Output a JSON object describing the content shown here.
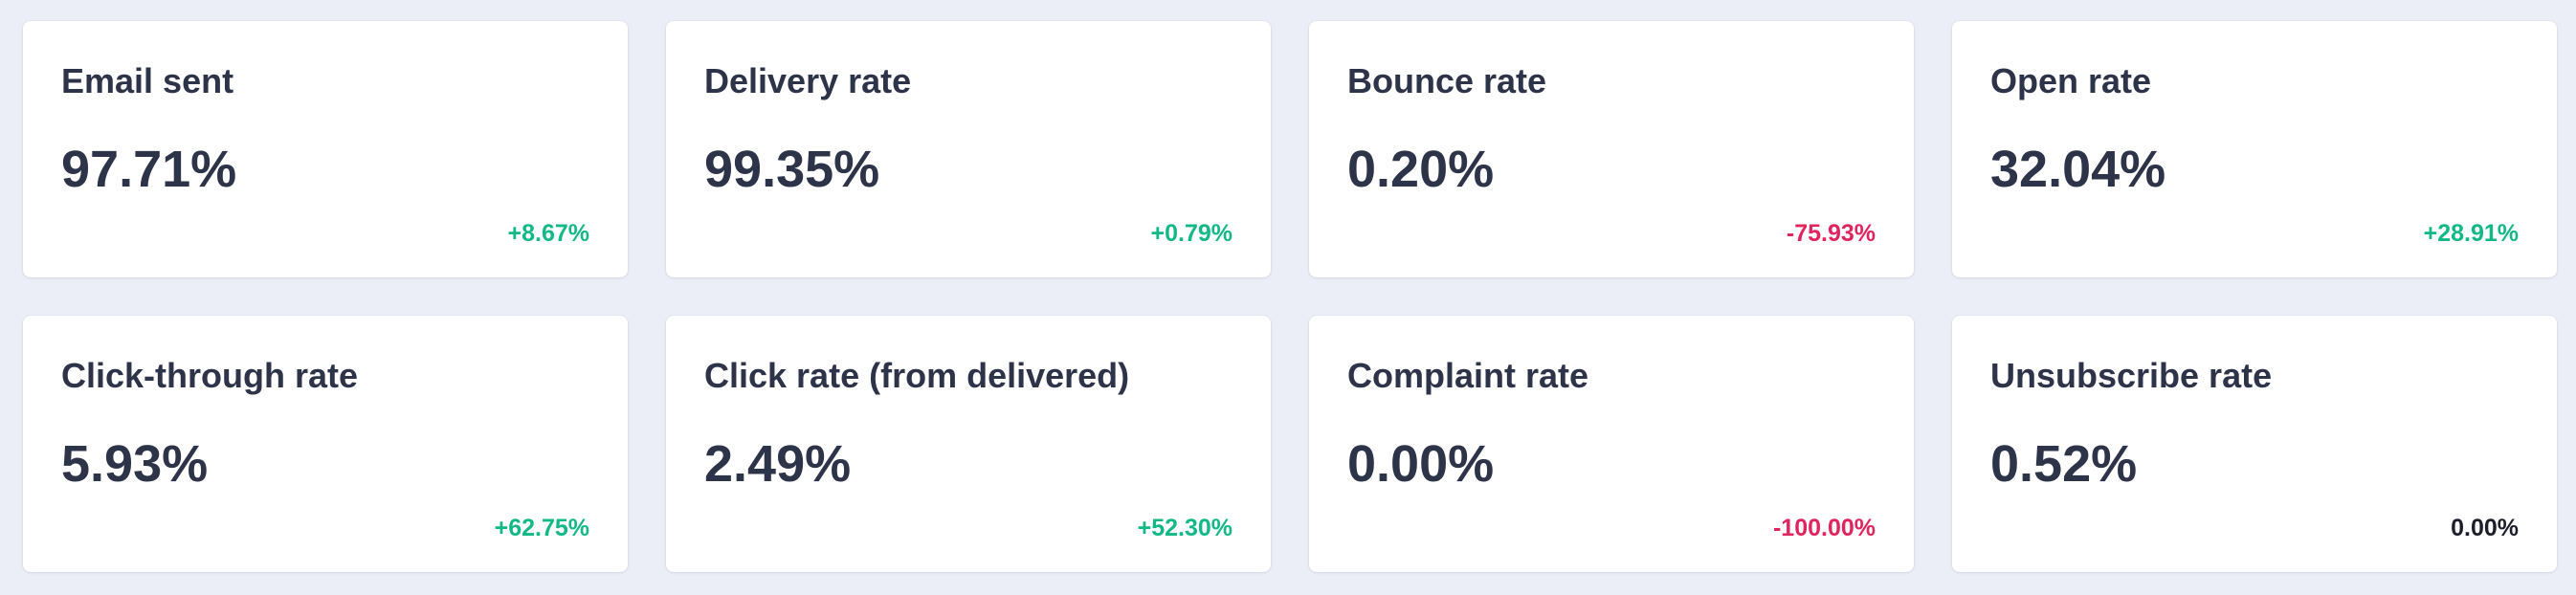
{
  "metrics": [
    {
      "title": "Email sent",
      "value": "97.71%",
      "change": "+8.67%",
      "trend": "up"
    },
    {
      "title": "Delivery rate",
      "value": "99.35%",
      "change": "+0.79%",
      "trend": "up"
    },
    {
      "title": "Bounce rate",
      "value": "0.20%",
      "change": "-75.93%",
      "trend": "down"
    },
    {
      "title": "Open rate",
      "value": "32.04%",
      "change": "+28.91%",
      "trend": "up"
    },
    {
      "title": "Click-through rate",
      "value": "5.93%",
      "change": "+62.75%",
      "trend": "up"
    },
    {
      "title": "Click rate (from delivered)",
      "value": "2.49%",
      "change": "+52.30%",
      "trend": "up"
    },
    {
      "title": "Complaint rate",
      "value": "0.00%",
      "change": "-100.00%",
      "trend": "down"
    },
    {
      "title": "Unsubscribe rate",
      "value": "0.52%",
      "change": "0.00%",
      "trend": "flat"
    }
  ],
  "colors": {
    "background": "#eceef7",
    "card": "#ffffff",
    "text": "#2d3348",
    "positive": "#12b886",
    "negative": "#e0245e",
    "neutral": "#1c1f2b"
  }
}
